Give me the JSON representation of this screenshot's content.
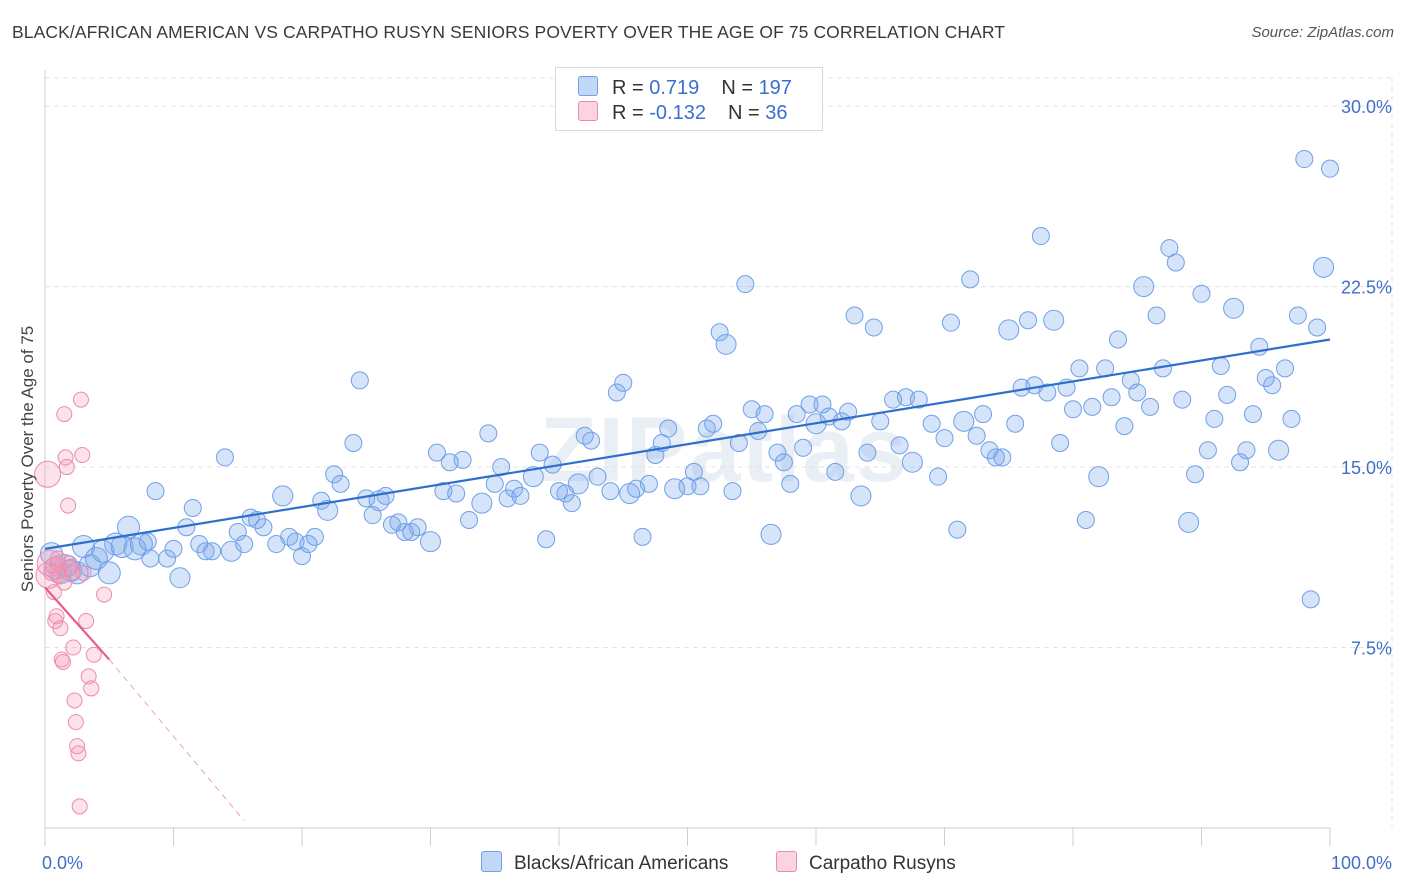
{
  "title": "BLACK/AFRICAN AMERICAN VS CARPATHO RUSYN SENIORS POVERTY OVER THE AGE OF 75 CORRELATION CHART",
  "source": "Source: ZipAtlas.com",
  "watermark": "ZIPatlas",
  "colors": {
    "blue": "#6fa0e8",
    "blue_fill": "rgba(120,165,235,0.30)",
    "blue_line": "#2f6fcc",
    "pink": "#f08aaa",
    "pink_fill": "rgba(245,160,190,0.30)",
    "pink_line": "#e4608a",
    "axis_text": "#3f6fc9"
  },
  "legend": {
    "rows": [
      {
        "label_r": "R = ",
        "r": " 0.719",
        "label_n": "N = ",
        "n": "197"
      },
      {
        "label_r": "R = ",
        "r": "-0.132",
        "label_n": "N = ",
        "n": " 36"
      }
    ]
  },
  "bottom_legend": {
    "series1": "Blacks/African Americans",
    "series2": "Carpatho Rusyns"
  },
  "chart_data": {
    "type": "scatter",
    "xlabel": "",
    "ylabel": "Seniors Poverty Over the Age of 75",
    "xlim": [
      0,
      100
    ],
    "ylim": [
      0,
      31.5
    ],
    "x_ticks": [
      "0.0%",
      "100.0%"
    ],
    "y_ticks": [
      {
        "v": 7.5,
        "label": "7.5%"
      },
      {
        "v": 15,
        "label": "15.0%"
      },
      {
        "v": 22.5,
        "label": "22.5%"
      },
      {
        "v": 30,
        "label": "30.0%"
      }
    ],
    "series": [
      {
        "name": "Blacks/African Americans",
        "trend": {
          "x0": 0,
          "y0": 11.6,
          "x1": 100,
          "y1": 20.3
        },
        "points": [
          [
            0.5,
            11.4
          ],
          [
            0.8,
            10.8
          ],
          [
            1.2,
            10.6
          ],
          [
            1.6,
            10.9
          ],
          [
            2.0,
            10.7
          ],
          [
            2.5,
            10.6
          ],
          [
            3.0,
            11.7
          ],
          [
            3.5,
            10.9
          ],
          [
            4.0,
            11.2
          ],
          [
            4.5,
            11.5
          ],
          [
            5.0,
            10.6
          ],
          [
            5.5,
            11.8
          ],
          [
            6.0,
            11.7
          ],
          [
            6.5,
            12.5
          ],
          [
            7.0,
            11.6
          ],
          [
            7.5,
            11.8
          ],
          [
            8.0,
            11.9
          ],
          [
            8.2,
            11.2
          ],
          [
            8.6,
            14.0
          ],
          [
            9.5,
            11.2
          ],
          [
            10.0,
            11.6
          ],
          [
            10.5,
            10.4
          ],
          [
            11.0,
            12.5
          ],
          [
            11.5,
            13.3
          ],
          [
            12.0,
            11.8
          ],
          [
            12.5,
            11.5
          ],
          [
            13.0,
            11.5
          ],
          [
            14.0,
            15.4
          ],
          [
            14.5,
            11.5
          ],
          [
            15.0,
            12.3
          ],
          [
            15.5,
            11.8
          ],
          [
            16.0,
            12.9
          ],
          [
            16.5,
            12.8
          ],
          [
            17.0,
            12.5
          ],
          [
            18.0,
            11.8
          ],
          [
            18.5,
            13.8
          ],
          [
            19.0,
            12.1
          ],
          [
            19.5,
            11.9
          ],
          [
            20.0,
            11.3
          ],
          [
            20.5,
            11.8
          ],
          [
            21.0,
            12.1
          ],
          [
            21.5,
            13.6
          ],
          [
            22.0,
            13.2
          ],
          [
            22.5,
            14.7
          ],
          [
            23.0,
            14.3
          ],
          [
            24.0,
            16.0
          ],
          [
            24.5,
            18.6
          ],
          [
            25.0,
            13.7
          ],
          [
            25.5,
            13.0
          ],
          [
            26.0,
            13.6
          ],
          [
            26.5,
            13.8
          ],
          [
            27.0,
            12.6
          ],
          [
            27.5,
            12.7
          ],
          [
            28.0,
            12.3
          ],
          [
            28.5,
            12.3
          ],
          [
            29.0,
            12.5
          ],
          [
            30.0,
            11.9
          ],
          [
            30.5,
            15.6
          ],
          [
            31.0,
            14.0
          ],
          [
            31.5,
            15.2
          ],
          [
            32.0,
            13.9
          ],
          [
            32.5,
            15.3
          ],
          [
            33.0,
            12.8
          ],
          [
            34.0,
            13.5
          ],
          [
            34.5,
            16.4
          ],
          [
            35.0,
            14.3
          ],
          [
            35.5,
            15.0
          ],
          [
            36.0,
            13.7
          ],
          [
            36.5,
            14.1
          ],
          [
            37.0,
            13.8
          ],
          [
            38.0,
            14.6
          ],
          [
            38.5,
            15.6
          ],
          [
            39.0,
            12.0
          ],
          [
            39.5,
            15.1
          ],
          [
            40.0,
            14.0
          ],
          [
            40.5,
            13.9
          ],
          [
            41.0,
            13.5
          ],
          [
            41.5,
            14.3
          ],
          [
            42.0,
            16.3
          ],
          [
            42.5,
            16.1
          ],
          [
            43.0,
            14.6
          ],
          [
            44.0,
            14.0
          ],
          [
            44.5,
            18.1
          ],
          [
            45.0,
            18.5
          ],
          [
            45.5,
            13.9
          ],
          [
            46.0,
            14.1
          ],
          [
            46.5,
            12.1
          ],
          [
            47.0,
            14.3
          ],
          [
            47.5,
            15.5
          ],
          [
            48.0,
            16.0
          ],
          [
            48.5,
            16.6
          ],
          [
            49.0,
            14.1
          ],
          [
            50.0,
            14.2
          ],
          [
            50.5,
            14.8
          ],
          [
            51.0,
            14.2
          ],
          [
            51.5,
            16.6
          ],
          [
            52.0,
            16.8
          ],
          [
            52.5,
            20.6
          ],
          [
            53.0,
            20.1
          ],
          [
            53.5,
            14.0
          ],
          [
            54.0,
            16.0
          ],
          [
            54.5,
            22.6
          ],
          [
            55.0,
            17.4
          ],
          [
            55.5,
            16.5
          ],
          [
            56.0,
            17.2
          ],
          [
            56.5,
            12.2
          ],
          [
            57.0,
            15.6
          ],
          [
            57.5,
            15.2
          ],
          [
            58.0,
            14.3
          ],
          [
            58.5,
            17.2
          ],
          [
            59.0,
            15.8
          ],
          [
            59.5,
            17.6
          ],
          [
            60.0,
            16.8
          ],
          [
            60.5,
            17.6
          ],
          [
            61.0,
            17.1
          ],
          [
            61.5,
            14.8
          ],
          [
            62.0,
            16.9
          ],
          [
            62.5,
            17.3
          ],
          [
            63.0,
            21.3
          ],
          [
            63.5,
            13.8
          ],
          [
            64.0,
            15.6
          ],
          [
            64.5,
            20.8
          ],
          [
            65.0,
            16.9
          ],
          [
            66.0,
            17.8
          ],
          [
            66.5,
            15.9
          ],
          [
            67.0,
            17.9
          ],
          [
            67.5,
            15.2
          ],
          [
            68.0,
            17.8
          ],
          [
            69.0,
            16.8
          ],
          [
            69.5,
            14.6
          ],
          [
            70.0,
            16.2
          ],
          [
            70.5,
            21.0
          ],
          [
            71.0,
            12.4
          ],
          [
            71.5,
            16.9
          ],
          [
            72.0,
            22.8
          ],
          [
            72.5,
            16.3
          ],
          [
            73.0,
            17.2
          ],
          [
            73.5,
            15.7
          ],
          [
            74.0,
            15.4
          ],
          [
            74.5,
            15.4
          ],
          [
            75.0,
            20.7
          ],
          [
            75.5,
            16.8
          ],
          [
            76.0,
            18.3
          ],
          [
            76.5,
            21.1
          ],
          [
            77.0,
            18.4
          ],
          [
            77.5,
            24.6
          ],
          [
            78.0,
            18.1
          ],
          [
            78.5,
            21.1
          ],
          [
            79.0,
            16.0
          ],
          [
            79.5,
            18.3
          ],
          [
            80.0,
            17.4
          ],
          [
            80.5,
            19.1
          ],
          [
            81.0,
            12.8
          ],
          [
            81.5,
            17.5
          ],
          [
            82.0,
            14.6
          ],
          [
            82.5,
            19.1
          ],
          [
            83.0,
            17.9
          ],
          [
            83.5,
            20.3
          ],
          [
            84.0,
            16.7
          ],
          [
            84.5,
            18.6
          ],
          [
            85.0,
            18.1
          ],
          [
            85.5,
            22.5
          ],
          [
            86.0,
            17.5
          ],
          [
            86.5,
            21.3
          ],
          [
            87.0,
            19.1
          ],
          [
            87.5,
            24.1
          ],
          [
            88.0,
            23.5
          ],
          [
            88.5,
            17.8
          ],
          [
            89.0,
            12.7
          ],
          [
            89.5,
            14.7
          ],
          [
            90.0,
            22.2
          ],
          [
            90.5,
            15.7
          ],
          [
            91.0,
            17.0
          ],
          [
            91.5,
            19.2
          ],
          [
            92.0,
            18.0
          ],
          [
            92.5,
            21.6
          ],
          [
            93.0,
            15.2
          ],
          [
            93.5,
            15.7
          ],
          [
            94.0,
            17.2
          ],
          [
            94.5,
            20.0
          ],
          [
            95.0,
            18.7
          ],
          [
            95.5,
            18.4
          ],
          [
            96.0,
            15.7
          ],
          [
            96.5,
            19.1
          ],
          [
            97.0,
            17.0
          ],
          [
            97.5,
            21.3
          ],
          [
            98.0,
            27.8
          ],
          [
            98.5,
            9.5
          ],
          [
            99.0,
            20.8
          ],
          [
            99.5,
            23.3
          ],
          [
            100.0,
            27.4
          ]
        ]
      },
      {
        "name": "Carpatho Rusyns",
        "trend": {
          "x0": 0,
          "y0": 10.0,
          "x1": 5.0,
          "y1": 7.0,
          "dash_x1": 15.5,
          "dash_y1": 0.3
        },
        "points": [
          [
            0.2,
            14.7
          ],
          [
            0.3,
            10.5
          ],
          [
            0.4,
            11.0
          ],
          [
            0.5,
            10.6
          ],
          [
            0.6,
            10.9
          ],
          [
            0.7,
            9.8
          ],
          [
            0.8,
            8.6
          ],
          [
            0.9,
            8.8
          ],
          [
            1.0,
            11.0
          ],
          [
            1.1,
            10.5
          ],
          [
            1.2,
            8.3
          ],
          [
            1.3,
            7.0
          ],
          [
            1.4,
            6.9
          ],
          [
            1.5,
            17.2
          ],
          [
            1.6,
            15.4
          ],
          [
            1.7,
            15.0
          ],
          [
            1.8,
            13.4
          ],
          [
            1.9,
            11.0
          ],
          [
            2.0,
            10.8
          ],
          [
            2.1,
            10.6
          ],
          [
            2.2,
            7.5
          ],
          [
            2.3,
            5.3
          ],
          [
            2.4,
            4.4
          ],
          [
            2.5,
            3.4
          ],
          [
            2.6,
            3.1
          ],
          [
            2.7,
            0.9
          ],
          [
            2.8,
            17.8
          ],
          [
            2.9,
            15.5
          ],
          [
            3.0,
            10.6
          ],
          [
            3.2,
            8.6
          ],
          [
            3.4,
            6.3
          ],
          [
            3.6,
            5.8
          ],
          [
            3.8,
            7.2
          ],
          [
            4.6,
            9.7
          ],
          [
            1.0,
            11.2
          ],
          [
            1.5,
            10.2
          ]
        ]
      }
    ]
  }
}
